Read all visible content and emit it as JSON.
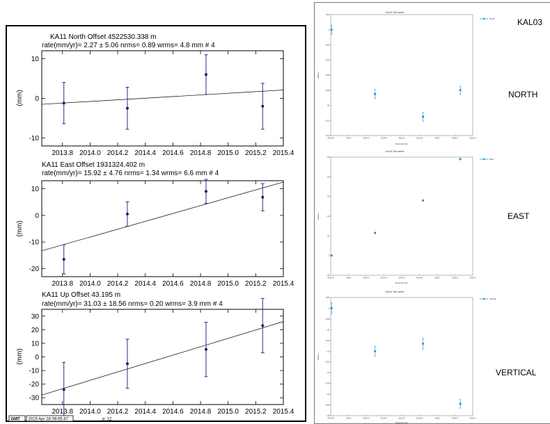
{
  "left_panel": {
    "x_ticks": [
      "2013.8",
      "2014.0",
      "2014.2",
      "2014.4",
      "2014.6",
      "2014.8",
      "2015.0",
      "2015.2",
      "2015.4"
    ],
    "footer": {
      "logo": "GMT",
      "timestamp": "2015 Apr 28 09:05:47",
      "page": "p: 12"
    }
  },
  "right_panel": {
    "station": "KAL03"
  },
  "chart_data": [
    {
      "type": "scatter",
      "title": "KA11  North Offset   4522530.338 m",
      "subtitle": "rate(mm/yr)=    2.27 ±  5.06  nrms=  0.89  wrms=    4.8 mm # 4",
      "ylabel": "(mm)",
      "xlim": [
        2013.65,
        2015.4
      ],
      "ylim": [
        -12,
        12
      ],
      "y_ticks": [
        -10,
        0,
        10
      ],
      "x": [
        2013.81,
        2014.27,
        2014.84,
        2015.25
      ],
      "y": [
        -1.2,
        -2.5,
        6.0,
        -2.0
      ],
      "err": [
        5.2,
        5.3,
        5.0,
        5.8
      ],
      "fit": [
        [
          2013.65,
          -1.5
        ],
        [
          2015.4,
          2.1
        ]
      ]
    },
    {
      "type": "scatter",
      "title": "KA11  East Offset   1931324.402 m",
      "subtitle": "rate(mm/yr)=   15.92 ±  4.76  nrms=  1.34  wrms=    6.6 mm # 4",
      "ylabel": "(mm)",
      "xlim": [
        2013.65,
        2015.4
      ],
      "ylim": [
        -23,
        13
      ],
      "y_ticks": [
        -20,
        -10,
        0,
        10
      ],
      "x": [
        2013.81,
        2014.27,
        2014.84,
        2015.25
      ],
      "y": [
        -16.5,
        0.5,
        9.0,
        6.8
      ],
      "err": [
        5.5,
        4.6,
        4.5,
        5.1
      ],
      "fit": [
        [
          2013.65,
          -13.3
        ],
        [
          2015.4,
          12.5
        ]
      ]
    },
    {
      "type": "scatter",
      "title": "KA11  Up Offset      43.195 m",
      "subtitle": "rate(mm/yr)=   31.03 ± 18.56  nrms=  0.20  wrms=    3.9 mm # 4",
      "ylabel": "(mm)",
      "xlim": [
        2013.65,
        2015.4
      ],
      "ylim": [
        -35,
        35
      ],
      "y_ticks": [
        -30,
        -20,
        -10,
        0,
        10,
        20,
        30
      ],
      "x": [
        2013.81,
        2014.27,
        2014.84,
        2015.25
      ],
      "y": [
        -24.0,
        -5.0,
        5.5,
        23.0
      ],
      "err": [
        20.0,
        18.0,
        20.0,
        20.0
      ],
      "fit": [
        [
          2013.65,
          -28.0
        ],
        [
          2015.4,
          26.0
        ]
      ]
    },
    {
      "type": "scatter",
      "title": "KAL03 Time series",
      "component": "NORTH",
      "legend": "North",
      "xlabel": "Decimal Year",
      "ylabel": "Meters",
      "xlim": [
        2013.8,
        2015.4
      ],
      "ylim": [
        -0.014,
        0.002
      ],
      "y_ticks": [
        0.002,
        0,
        -0.002,
        -0.004,
        -0.006,
        -0.008,
        -0.01,
        -0.012,
        -0.014
      ],
      "x_ticks": [
        2013.8,
        2014,
        2014.2,
        2014.4,
        2014.6,
        2014.8,
        2015,
        2015.2,
        2015.4
      ],
      "x": [
        2013.81,
        2014.3,
        2014.84,
        2015.26
      ],
      "y": [
        0.0,
        -0.0085,
        -0.0115,
        -0.008
      ],
      "err": [
        0.0006,
        0.0006,
        0.0006,
        0.0005
      ]
    },
    {
      "type": "scatter",
      "title": "KAL03 Time series",
      "component": "EAST",
      "legend": "East",
      "xlabel": "Decimal Year",
      "ylabel": "Meters",
      "xlim": [
        2013.8,
        2015.4
      ],
      "ylim": [
        -0.01,
        0.05
      ],
      "y_ticks": [
        -0.01,
        0,
        0.01,
        0.02,
        0.03,
        0.04,
        0.05
      ],
      "x_ticks": [
        2013.8,
        2014,
        2014.2,
        2014.4,
        2014.6,
        2014.8,
        2015,
        2015.2,
        2015.4
      ],
      "x": [
        2013.81,
        2014.3,
        2014.84,
        2015.26
      ],
      "y": [
        0.0,
        0.0115,
        0.028,
        0.049
      ],
      "err": [
        0.0004,
        0.0004,
        0.0004,
        0.0004
      ]
    },
    {
      "type": "scatter",
      "title": "KAL03 Time series",
      "component": "VERTICAL",
      "legend": "Vertical",
      "xlabel": "Decimal Year",
      "ylabel": "Meters",
      "xlim": [
        2013.8,
        2015.4
      ],
      "ylim": [
        -0.05,
        0.005
      ],
      "y_ticks": [
        0.005,
        0,
        -0.005,
        -0.01,
        -0.015,
        -0.02,
        -0.025,
        -0.03,
        -0.035,
        -0.04,
        -0.045,
        -0.05
      ],
      "x_ticks": [
        2013.8,
        2014,
        2014.2,
        2014.4,
        2014.6,
        2014.8,
        2015,
        2015.2,
        2015.4
      ],
      "x": [
        2013.81,
        2014.3,
        2014.84,
        2015.26
      ],
      "y": [
        0.0,
        -0.02,
        -0.0165,
        -0.0445
      ],
      "err": [
        0.0025,
        0.0022,
        0.0025,
        0.002
      ]
    }
  ]
}
